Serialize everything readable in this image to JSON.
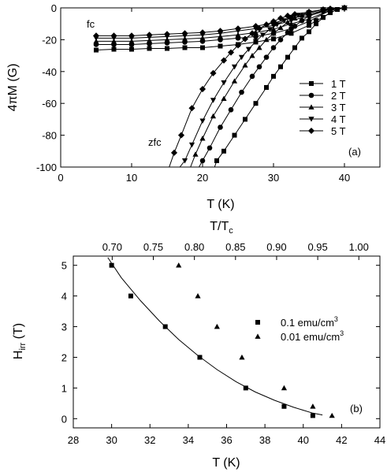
{
  "chart_data": [
    {
      "type": "line",
      "panel_label": "(a)",
      "xlabel": "T (K)",
      "ylabel": "4πM (G)",
      "xlim": [
        0,
        45
      ],
      "ylim": [
        -100,
        0
      ],
      "x_ticks": [
        0,
        10,
        20,
        30,
        40
      ],
      "y_ticks": [
        0,
        -20,
        -40,
        -60,
        -80,
        -100
      ],
      "grid": false,
      "legend_placement": "right",
      "annotations": [
        "fc",
        "zfc"
      ],
      "series": [
        {
          "name": "1 T",
          "marker": "square",
          "fc": {
            "x": [
              5,
              7.5,
              10,
              12.5,
              15,
              17.5,
              20,
              22.5,
              25,
              27.5,
              30,
              32.5,
              35,
              36,
              37,
              38,
              39,
              40,
              42,
              45
            ],
            "y": [
              -26.5,
              -26,
              -26,
              -25.5,
              -25.5,
              -25,
              -25,
              -24,
              -23,
              -21.5,
              -19.5,
              -16,
              -11,
              -8,
              -6,
              -3,
              -1,
              0,
              0,
              0
            ]
          },
          "zfc": {
            "x": [
              21.7,
              22,
              23,
              24.5,
              26,
              27.5,
              29,
              30,
              31,
              32,
              33,
              34,
              35,
              36,
              37,
              38,
              39,
              40,
              42,
              45
            ],
            "y": [
              -100,
              -96,
              -90,
              -80,
              -70,
              -60,
              -50,
              -43,
              -37,
              -31,
              -25,
              -19,
              -15,
              -10,
              -6,
              -3,
              -1,
              0,
              0,
              0
            ]
          }
        },
        {
          "name": "2 T",
          "marker": "circle",
          "fc": {
            "x": [
              5,
              7.5,
              10,
              12.5,
              15,
              17.5,
              20,
              22.5,
              25,
              27.5,
              30,
              32.5,
              35,
              38,
              40,
              42,
              45
            ],
            "y": [
              -23,
              -23,
              -23,
              -22.5,
              -22,
              -21.5,
              -21,
              -20,
              -19,
              -18,
              -16,
              -13,
              -8.5,
              -1.5,
              0,
              0,
              0
            ]
          },
          "zfc": {
            "x": [
              19.5,
              20,
              21,
              22.5,
              24,
              25.5,
              27,
              28,
              29,
              30,
              31,
              32,
              33,
              34,
              35,
              37,
              38,
              40,
              45
            ],
            "y": [
              -100,
              -96,
              -88,
              -75,
              -64,
              -53,
              -43,
              -37,
              -31,
              -25,
              -20,
              -15.5,
              -11.5,
              -8,
              -5,
              -2,
              -1,
              0,
              0
            ]
          }
        },
        {
          "name": "3 T",
          "marker": "triangle-up",
          "fc": {
            "x": [
              5,
              7.5,
              10,
              12.5,
              15,
              17.5,
              20,
              22.5,
              25,
              27.5,
              30,
              32.5,
              35,
              38,
              40,
              42,
              45
            ],
            "y": [
              -21,
              -21,
              -21,
              -20.5,
              -20,
              -19.5,
              -19,
              -18,
              -17,
              -15.5,
              -13.5,
              -10,
              -7,
              -1.5,
              0,
              0,
              0
            ]
          },
          "zfc": {
            "x": [
              18.3,
              19,
              20,
              21.5,
              23,
              24.5,
              26,
              27,
              28,
              29,
              30,
              31,
              32,
              33,
              34,
              35,
              37,
              40,
              45
            ],
            "y": [
              -100,
              -92,
              -82,
              -68,
              -57,
              -46,
              -36,
              -30,
              -25,
              -20,
              -16,
              -12.5,
              -9,
              -6.5,
              -4.5,
              -3,
              -1,
              0,
              0
            ]
          }
        },
        {
          "name": "4 T",
          "marker": "triangle-down",
          "fc": {
            "x": [
              5,
              7.5,
              10,
              12.5,
              15,
              17.5,
              20,
              22.5,
              25,
              27.5,
              30,
              32.5,
              35,
              38,
              40,
              42,
              45
            ],
            "y": [
              -19,
              -19,
              -19,
              -18.5,
              -18,
              -17.5,
              -17,
              -16,
              -14.5,
              -13,
              -11,
              -8,
              -5,
              -1,
              0,
              0,
              0
            ]
          },
          "zfc": {
            "x": [
              16.8,
              17.5,
              18.5,
              20,
              21.5,
              23,
              24.5,
              25.5,
              26.5,
              27.5,
              28.5,
              29.5,
              30.5,
              31.5,
              32.5,
              33.5,
              35,
              37,
              40,
              45
            ],
            "y": [
              -100,
              -96,
              -86,
              -71,
              -58,
              -47,
              -37,
              -31,
              -26,
              -21,
              -17,
              -13.5,
              -10.5,
              -8,
              -6,
              -4.5,
              -3,
              -1,
              0,
              0
            ]
          }
        },
        {
          "name": "5 T",
          "marker": "diamond",
          "fc": {
            "x": [
              5,
              7.5,
              10,
              12.5,
              15,
              17.5,
              20,
              22.5,
              25,
              27.5,
              30,
              32.5,
              35,
              38,
              40,
              42,
              45
            ],
            "y": [
              -17.5,
              -17.5,
              -17.5,
              -17,
              -16.5,
              -16,
              -15.5,
              -14.5,
              -13,
              -11.5,
              -9.5,
              -6.5,
              -4,
              -0.5,
              0,
              0,
              0
            ]
          },
          "zfc": {
            "x": [
              15.3,
              16,
              17,
              18.5,
              20,
              21.5,
              23,
              24,
              25,
              26,
              27,
              28,
              29,
              30,
              31,
              32,
              33,
              35,
              37,
              40,
              45
            ],
            "y": [
              -100,
              -91,
              -80,
              -63,
              -51,
              -41,
              -33,
              -28,
              -23.5,
              -19.5,
              -16,
              -13,
              -10.5,
              -8.5,
              -6.5,
              -5,
              -4,
              -2.5,
              -1,
              0,
              0
            ]
          }
        }
      ]
    },
    {
      "type": "scatter",
      "panel_label": "(b)",
      "xlabel": "T (K)",
      "ylabel_main": "H",
      "ylabel_sub": "irr",
      "ylabel_unit": " (T)",
      "top_xlabel": "T/T",
      "top_xlabel_sub": "c",
      "xlim": [
        28,
        44
      ],
      "ylim": [
        -0.3,
        5.3
      ],
      "x_ticks": [
        28,
        30,
        32,
        34,
        36,
        38,
        40,
        42,
        44
      ],
      "y_ticks": [
        0,
        1,
        2,
        3,
        4,
        5
      ],
      "top_ticks": [
        "0.70",
        "0.75",
        "0.80",
        "0.85",
        "0.90",
        "0.95",
        "1.00"
      ],
      "Tc_K": 42.9,
      "grid": false,
      "legend_placement": "right",
      "series": [
        {
          "name_main": "0.1 emu/cm",
          "name_sup": "3",
          "marker": "square",
          "x": [
            30,
            31,
            32.8,
            34.6,
            37,
            39,
            40.5
          ],
          "y": [
            5,
            4,
            3,
            2,
            1,
            0.4,
            0.1
          ]
        },
        {
          "name_main": "0.01 emu/cm",
          "name_sup": "3",
          "marker": "triangle-up",
          "x": [
            33.5,
            34.5,
            35.5,
            36.8,
            39,
            40.5,
            41.5
          ],
          "y": [
            5,
            4,
            3,
            2,
            1,
            0.4,
            0.1
          ]
        }
      ],
      "fit_curve": {
        "x": [
          29.8,
          30.5,
          31.5,
          32.5,
          33.5,
          34.5,
          35.5,
          36.5,
          37.5,
          38.5,
          39.5,
          40.5,
          41
        ],
        "y": [
          5.25,
          4.6,
          3.85,
          3.18,
          2.58,
          2.06,
          1.6,
          1.2,
          0.87,
          0.6,
          0.37,
          0.18,
          0.12
        ]
      }
    }
  ]
}
